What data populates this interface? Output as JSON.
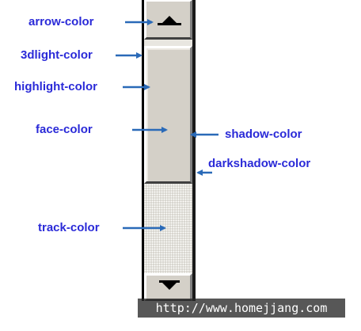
{
  "labels": {
    "arrow_color": "arrow-color",
    "threedlight_color": "3dlight-color",
    "highlight_color": "highlight-color",
    "face_color": "face-color",
    "shadow_color": "shadow-color",
    "darkshadow_color": "darkshadow-color",
    "track_color": "track-color"
  },
  "watermark": "http://www.homejjang.com",
  "colors": {
    "label_text": "#2a2ad8",
    "pointer_arrow": "#2a6ab8",
    "scrollbar_face": "#d4d0c8",
    "scrollbar_border": "#000000"
  },
  "icons": {
    "up": "triangle-up-icon",
    "down": "triangle-down-icon"
  }
}
